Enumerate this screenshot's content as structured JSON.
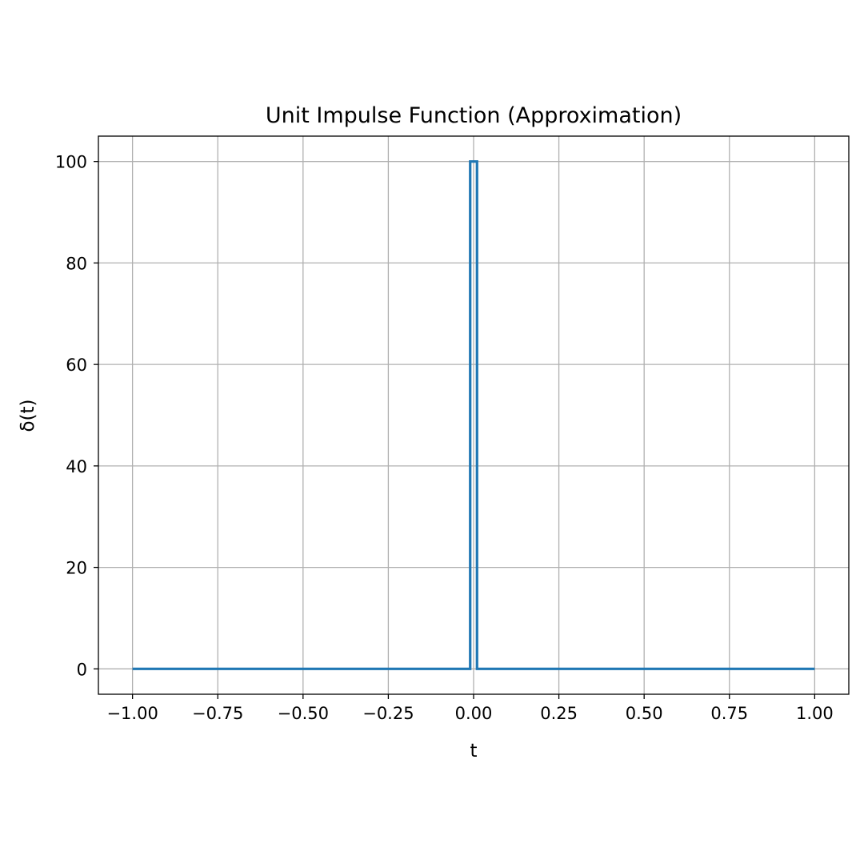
{
  "chart_data": {
    "type": "line",
    "title": "Unit Impulse Function (Approximation)",
    "xlabel": "t",
    "ylabel": "δ(t)",
    "xlim": [
      -1.1,
      1.1
    ],
    "ylim": [
      -5,
      105
    ],
    "xticks": [
      -1.0,
      -0.75,
      -0.5,
      -0.25,
      0.0,
      0.25,
      0.5,
      0.75,
      1.0
    ],
    "xtick_labels": [
      "−1.00",
      "−0.75",
      "−0.50",
      "−0.25",
      "0.00",
      "0.25",
      "0.50",
      "0.75",
      "1.00"
    ],
    "yticks": [
      0,
      20,
      40,
      60,
      80,
      100
    ],
    "ytick_labels": [
      "0",
      "20",
      "40",
      "60",
      "80",
      "100"
    ],
    "grid": true,
    "series": [
      {
        "color": "#1f77b4",
        "x": [
          -1.0,
          -0.01,
          -0.01,
          0.01,
          0.01,
          1.0
        ],
        "y": [
          0,
          0,
          100,
          100,
          0,
          0
        ]
      }
    ]
  }
}
